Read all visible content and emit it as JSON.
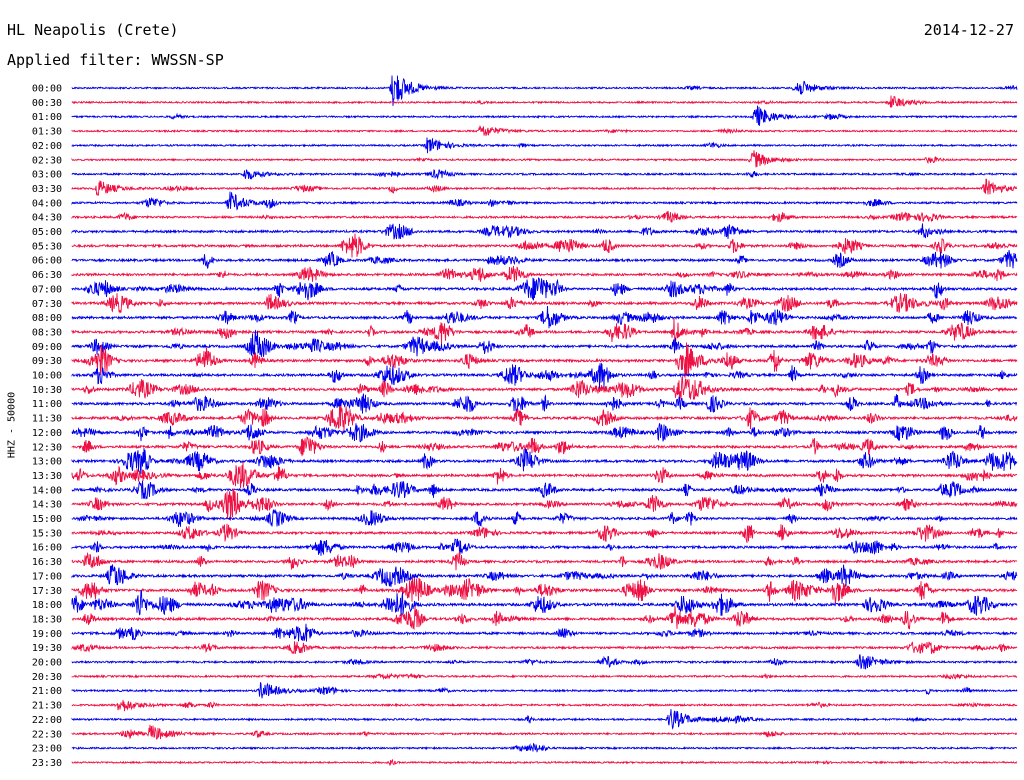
{
  "header": {
    "station": "HL Neapolis (Crete)",
    "date": "2014-12-27",
    "filter": "Applied filter: WWSSN-SP"
  },
  "chart_data": {
    "type": "line",
    "subtype": "helicorder",
    "ylabel": "HHZ - 50000",
    "row_labels": [
      "00:00",
      "00:30",
      "01:00",
      "01:30",
      "02:00",
      "02:30",
      "03:00",
      "03:30",
      "04:00",
      "04:30",
      "05:00",
      "05:30",
      "06:00",
      "06:30",
      "07:00",
      "07:30",
      "08:00",
      "08:30",
      "09:00",
      "09:30",
      "10:00",
      "10:30",
      "11:00",
      "11:30",
      "12:00",
      "12:30",
      "13:00",
      "13:30",
      "14:00",
      "14:30",
      "15:00",
      "15:30",
      "16:00",
      "16:30",
      "17:00",
      "17:30",
      "18:00",
      "18:30",
      "19:00",
      "19:30",
      "20:00",
      "20:30",
      "21:00",
      "21:30",
      "22:00",
      "22:30",
      "23:00",
      "23:30"
    ],
    "series_colors": [
      "#0000ee",
      "#ee1144"
    ],
    "minutes_per_row": 30,
    "activity_by_row": [
      0.3,
      0.3,
      0.3,
      0.3,
      0.3,
      0.3,
      0.4,
      0.4,
      0.5,
      0.6,
      0.7,
      0.8,
      0.8,
      0.8,
      0.9,
      0.9,
      0.9,
      0.9,
      0.9,
      0.9,
      0.9,
      0.9,
      0.9,
      0.9,
      0.9,
      0.9,
      0.9,
      0.9,
      0.9,
      0.9,
      0.8,
      0.8,
      0.8,
      0.8,
      0.9,
      1.0,
      1.0,
      0.9,
      0.8,
      0.6,
      0.5,
      0.4,
      0.4,
      0.4,
      0.4,
      0.4,
      0.3,
      0.3
    ],
    "events": [
      {
        "row": 0,
        "minute": 10.2,
        "amplitude": 1.0
      },
      {
        "row": 0,
        "minute": 23.0,
        "amplitude": 0.5
      },
      {
        "row": 1,
        "minute": 26.0,
        "amplitude": 0.35
      },
      {
        "row": 2,
        "minute": 21.7,
        "amplitude": 0.6
      },
      {
        "row": 3,
        "minute": 13.0,
        "amplitude": 0.35
      },
      {
        "row": 4,
        "minute": 11.3,
        "amplitude": 0.45
      },
      {
        "row": 5,
        "minute": 21.6,
        "amplitude": 0.5
      },
      {
        "row": 6,
        "minute": 5.5,
        "amplitude": 0.3
      },
      {
        "row": 7,
        "minute": 0.8,
        "amplitude": 0.45
      },
      {
        "row": 7,
        "minute": 29.0,
        "amplitude": 0.45
      },
      {
        "row": 8,
        "minute": 5.0,
        "amplitude": 0.55
      },
      {
        "row": 19,
        "minute": 19.5,
        "amplitude": 0.7
      },
      {
        "row": 21,
        "minute": 19.2,
        "amplitude": 0.8
      },
      {
        "row": 40,
        "minute": 25.0,
        "amplitude": 0.5
      },
      {
        "row": 42,
        "minute": 6.0,
        "amplitude": 0.5
      },
      {
        "row": 43,
        "minute": 1.5,
        "amplitude": 0.4
      },
      {
        "row": 44,
        "minute": 19.0,
        "amplitude": 0.6
      },
      {
        "row": 45,
        "minute": 2.5,
        "amplitude": 0.45
      }
    ]
  }
}
